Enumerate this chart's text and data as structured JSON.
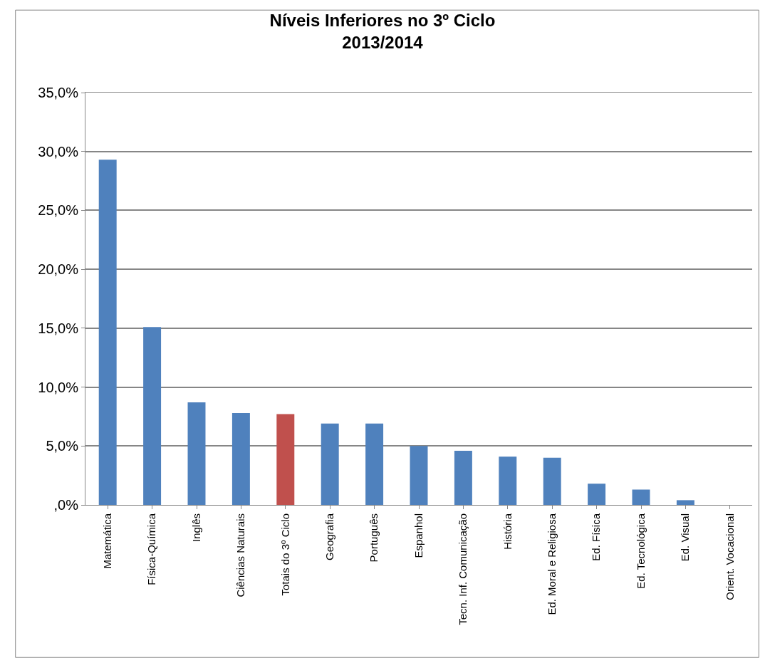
{
  "chart_data": {
    "type": "bar",
    "title": "Níveis Inferiores no 3º Ciclo\n2013/2014",
    "categories": [
      "Matemática",
      "Física-Química",
      "Inglês",
      "Ciências Naturais",
      "Totais do 3º Ciclo",
      "Geografia",
      "Português",
      "Espanhol",
      "Tecn. Inf. Comunicação",
      "História",
      "Ed. Moral e Religiosa",
      "Ed. Física",
      "Ed. Tecnológica",
      "Ed. Visual",
      "Orient. Vocacional"
    ],
    "values": [
      29.3,
      15.1,
      8.7,
      7.8,
      7.7,
      6.9,
      6.9,
      5.0,
      4.6,
      4.1,
      4.0,
      1.8,
      1.3,
      0.4,
      0
    ],
    "colors": [
      "#4f81bd",
      "#4f81bd",
      "#4f81bd",
      "#4f81bd",
      "#c0504d",
      "#4f81bd",
      "#4f81bd",
      "#4f81bd",
      "#4f81bd",
      "#4f81bd",
      "#4f81bd",
      "#4f81bd",
      "#4f81bd",
      "#4f81bd",
      "#4f81bd"
    ],
    "ylim": [
      0,
      35
    ],
    "yticks": [
      {
        "value": 0,
        "label": ",0%"
      },
      {
        "value": 5,
        "label": "5,0%"
      },
      {
        "value": 10,
        "label": "10,0%"
      },
      {
        "value": 15,
        "label": "15,0%"
      },
      {
        "value": 20,
        "label": "20,0%"
      },
      {
        "value": 25,
        "label": "25,0%"
      },
      {
        "value": 30,
        "label": "30,0%"
      },
      {
        "value": 35,
        "label": "35,0%"
      }
    ],
    "grid": "y",
    "legend": false
  }
}
